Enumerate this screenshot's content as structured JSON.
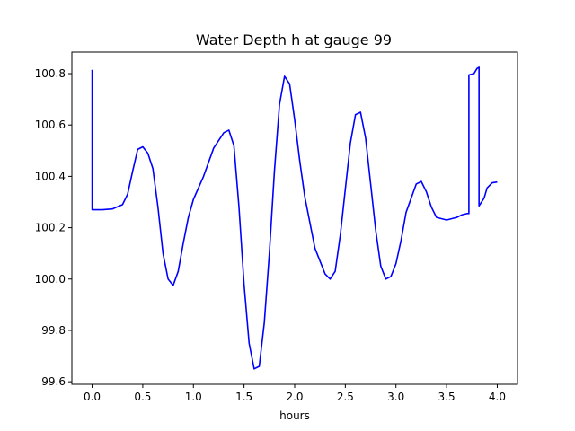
{
  "chart_data": {
    "type": "line",
    "title": "Water Depth h at gauge 99",
    "xlabel": "hours",
    "ylabel": "",
    "xlim": [
      -0.2,
      4.2
    ],
    "ylim": [
      99.59,
      100.884
    ],
    "xticks": [
      0.0,
      0.5,
      1.0,
      1.5,
      2.0,
      2.5,
      3.0,
      3.5,
      4.0
    ],
    "xtick_labels": [
      "0.0",
      "0.5",
      "1.0",
      "1.5",
      "2.0",
      "2.5",
      "3.0",
      "3.5",
      "4.0"
    ],
    "yticks": [
      99.6,
      99.8,
      100.0,
      100.2,
      100.4,
      100.6,
      100.8
    ],
    "ytick_labels": [
      "99.6",
      "99.8",
      "100.0",
      "100.2",
      "100.4",
      "100.6",
      "100.8"
    ],
    "grid": false,
    "series": [
      {
        "color": "#0000ff",
        "x": [
          0.0,
          0.0,
          0.1,
          0.2,
          0.3,
          0.35,
          0.4,
          0.45,
          0.5,
          0.55,
          0.6,
          0.65,
          0.7,
          0.75,
          0.8,
          0.85,
          0.9,
          0.95,
          1.0,
          1.1,
          1.2,
          1.3,
          1.35,
          1.4,
          1.45,
          1.5,
          1.55,
          1.6,
          1.65,
          1.7,
          1.75,
          1.8,
          1.85,
          1.9,
          1.95,
          2.0,
          2.05,
          2.1,
          2.2,
          2.3,
          2.35,
          2.4,
          2.45,
          2.5,
          2.55,
          2.6,
          2.65,
          2.7,
          2.75,
          2.8,
          2.85,
          2.9,
          2.95,
          3.0,
          3.05,
          3.1,
          3.2,
          3.25,
          3.3,
          3.35,
          3.4,
          3.5,
          3.6,
          3.65,
          3.7,
          3.72,
          3.72,
          3.77,
          3.8,
          3.82,
          3.82,
          3.87,
          3.9,
          3.95,
          4.0
        ],
        "y": [
          100.815,
          100.27,
          100.27,
          100.273,
          100.29,
          100.33,
          100.42,
          100.505,
          100.515,
          100.49,
          100.43,
          100.28,
          100.1,
          100.0,
          99.975,
          100.03,
          100.14,
          100.24,
          100.31,
          100.4,
          100.51,
          100.57,
          100.58,
          100.52,
          100.28,
          99.98,
          99.75,
          99.65,
          99.66,
          99.83,
          100.1,
          100.42,
          100.68,
          100.79,
          100.76,
          100.62,
          100.46,
          100.32,
          100.12,
          100.02,
          100.0,
          100.03,
          100.17,
          100.35,
          100.53,
          100.64,
          100.65,
          100.55,
          100.37,
          100.19,
          100.05,
          100.0,
          100.01,
          100.06,
          100.15,
          100.26,
          100.37,
          100.38,
          100.34,
          100.28,
          100.24,
          100.23,
          100.24,
          100.25,
          100.255,
          100.255,
          100.795,
          100.8,
          100.82,
          100.825,
          100.285,
          100.315,
          100.355,
          100.375,
          100.378
        ]
      }
    ]
  }
}
